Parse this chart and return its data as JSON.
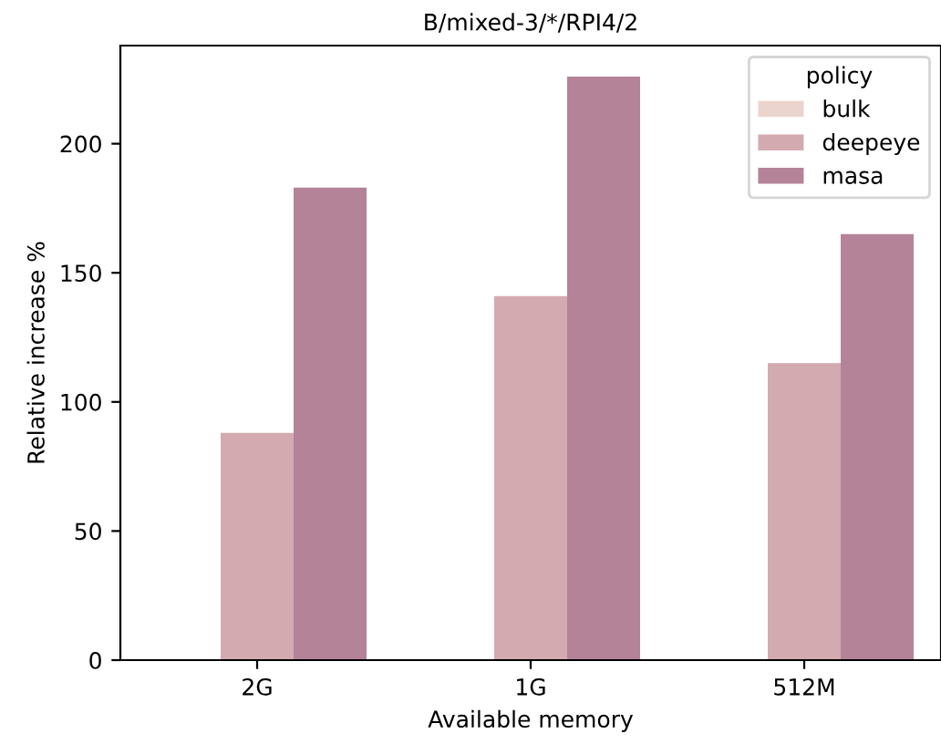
{
  "chart_data": {
    "type": "bar",
    "title": "B/mixed-3/*/RPI4/2",
    "xlabel": "Available memory",
    "ylabel": "Relative increase %",
    "legend_title": "policy",
    "categories": [
      "2G",
      "1G",
      "512M"
    ],
    "series": [
      {
        "name": "bulk",
        "color": "#ebd3ce",
        "values": [
          0,
          0,
          0
        ]
      },
      {
        "name": "deepeye",
        "color": "#d3aab0",
        "values": [
          88,
          141,
          115
        ]
      },
      {
        "name": "masa",
        "color": "#b48397",
        "values": [
          183,
          226,
          165
        ]
      }
    ],
    "ylim": [
      0,
      238
    ],
    "yticks": [
      0,
      50,
      100,
      150,
      200
    ],
    "grid": false,
    "legend": "top right"
  }
}
